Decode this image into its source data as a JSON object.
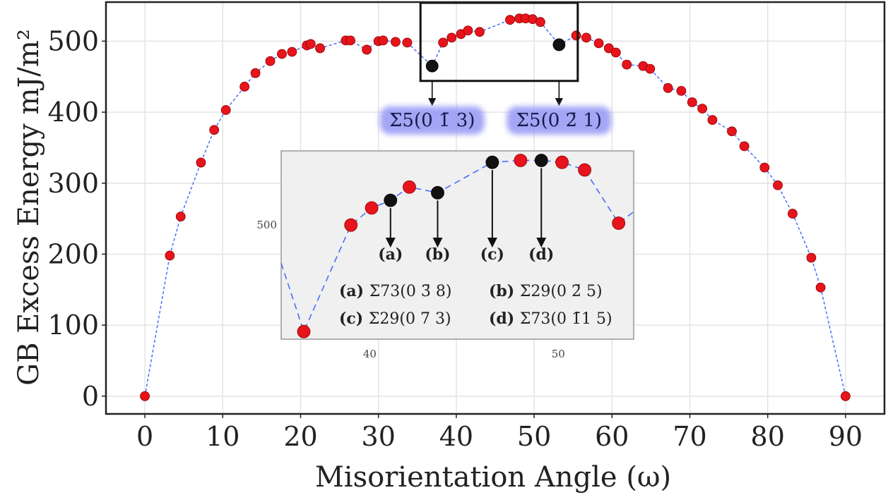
{
  "chart_data": {
    "type": "scatter",
    "xlabel": "Misorientation Angle (ω)",
    "ylabel": "GB Excess Energy mJ/m²",
    "xlim": [
      -5,
      95
    ],
    "ylim": [
      -25,
      555
    ],
    "xticks": [
      0,
      10,
      20,
      30,
      40,
      50,
      60,
      70,
      80,
      90
    ],
    "yticks": [
      0,
      100,
      200,
      300,
      400,
      500
    ],
    "grid": true,
    "line_style": "dashed",
    "colors": {
      "points": "#e8141c",
      "special_points": "#111111",
      "line": "#4a6cff",
      "box": "#111111",
      "callout_glow": "#9a9cf5",
      "inset_bg": "#f0f0f0"
    },
    "series": [
      {
        "points": [
          [
            0,
            0
          ],
          [
            3.2,
            198
          ],
          [
            4.6,
            253
          ],
          [
            7.2,
            329
          ],
          [
            8.9,
            375
          ],
          [
            10.4,
            403
          ],
          [
            12.8,
            436
          ],
          [
            14.2,
            455
          ],
          [
            16.1,
            472
          ],
          [
            17.6,
            482
          ],
          [
            18.9,
            485
          ],
          [
            20.8,
            494
          ],
          [
            21.3,
            496
          ],
          [
            22.5,
            490
          ],
          [
            25.8,
            501
          ],
          [
            26.4,
            501
          ],
          [
            28.5,
            488
          ],
          [
            30.0,
            500
          ],
          [
            30.6,
            501
          ],
          [
            32.2,
            499
          ],
          [
            33.7,
            498
          ],
          [
            36.9,
            465
          ],
          [
            38.3,
            498
          ],
          [
            39.4,
            505
          ],
          [
            40.6,
            510
          ],
          [
            41.5,
            515
          ],
          [
            43.0,
            513
          ],
          [
            46.9,
            530
          ],
          [
            48.1,
            532
          ],
          [
            48.9,
            532
          ],
          [
            49.8,
            531
          ],
          [
            50.8,
            527
          ],
          [
            53.2,
            495
          ],
          [
            55.4,
            508
          ],
          [
            56.7,
            505
          ],
          [
            58.3,
            497
          ],
          [
            59.6,
            490
          ],
          [
            60.5,
            484
          ],
          [
            61.9,
            467
          ],
          [
            64.0,
            465
          ],
          [
            64.9,
            461
          ],
          [
            67.2,
            434
          ],
          [
            68.9,
            430
          ],
          [
            70.3,
            414
          ],
          [
            71.6,
            405
          ],
          [
            72.9,
            389
          ],
          [
            75.4,
            373
          ],
          [
            77.0,
            352
          ],
          [
            79.6,
            322
          ],
          [
            81.3,
            297
          ],
          [
            83.2,
            257
          ],
          [
            85.6,
            195
          ],
          [
            86.8,
            153
          ],
          [
            90.0,
            0
          ]
        ],
        "special_points": [
          [
            36.9,
            465
          ],
          [
            53.2,
            495
          ]
        ]
      }
    ],
    "highlight_box": {
      "x_range": [
        35.4,
        55.6
      ],
      "y_range": [
        444,
        554
      ]
    },
    "callouts": [
      {
        "label": "Σ5(0 1̄ 3)",
        "x": 36.9,
        "y": 465
      },
      {
        "label": "Σ5(0 2̄ 1)",
        "x": 53.2,
        "y": 495
      }
    ],
    "inset": {
      "xlim": [
        35.3,
        54.0
      ],
      "ylim": [
        440,
        539
      ],
      "xticks": [
        40,
        50
      ],
      "yticks": [
        500
      ],
      "points": [
        [
          36.5,
          444
        ],
        [
          39.0,
          500
        ],
        [
          40.1,
          509
        ],
        [
          41.1,
          513
        ],
        [
          42.1,
          520
        ],
        [
          43.6,
          517
        ],
        [
          46.5,
          533
        ],
        [
          48.0,
          534
        ],
        [
          49.1,
          534
        ],
        [
          50.2,
          533
        ],
        [
          51.4,
          529
        ],
        [
          53.2,
          501
        ],
        [
          54.0,
          507
        ]
      ],
      "special_points": [
        {
          "x": 41.1,
          "y": 513,
          "letter": "(a)"
        },
        {
          "x": 43.6,
          "y": 517,
          "letter": "(b)"
        },
        {
          "x": 46.5,
          "y": 533,
          "letter": "(c)"
        },
        {
          "x": 49.1,
          "y": 534,
          "letter": "(d)"
        }
      ],
      "legend": [
        {
          "key": "(a)",
          "label": "Σ73(0 3̄ 8)"
        },
        {
          "key": "(b)",
          "label": "Σ29(0 2̄ 5)"
        },
        {
          "key": "(c)",
          "label": "Σ29(0 7̄ 3)"
        },
        {
          "key": "(d)",
          "label": "Σ73(0 1̄1 5)"
        }
      ]
    }
  }
}
